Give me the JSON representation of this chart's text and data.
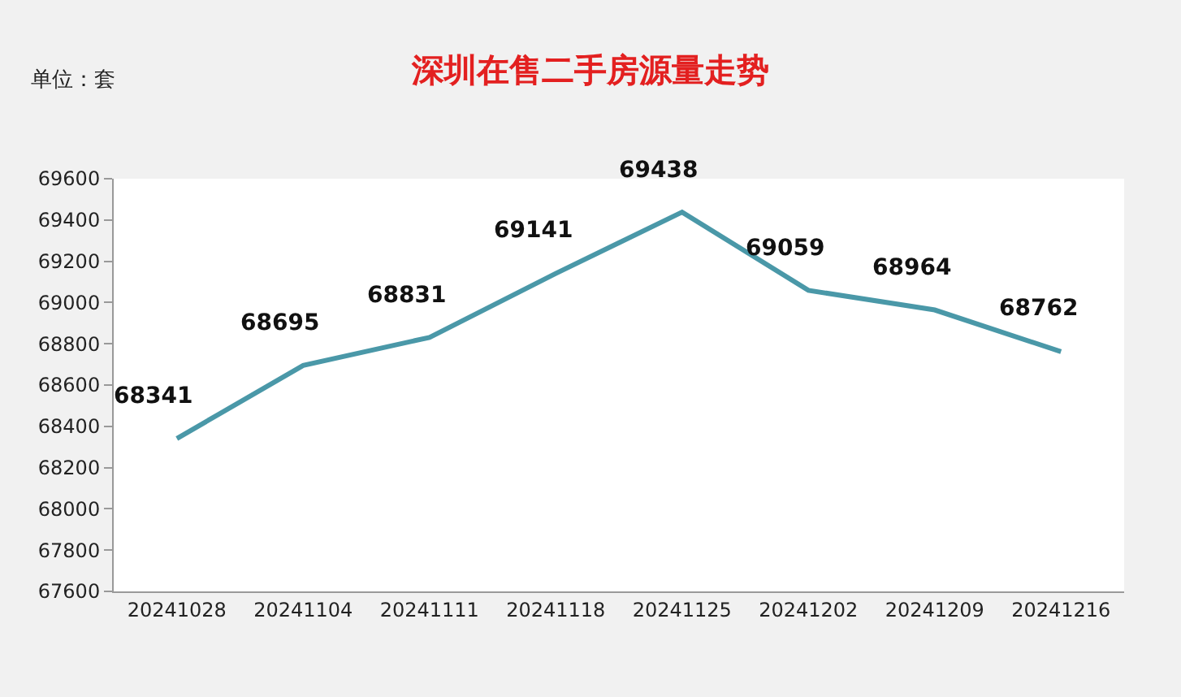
{
  "chart_data": {
    "type": "line",
    "title": "深圳在售二手房源量走势",
    "annotations": [
      "单位：套"
    ],
    "categories": [
      "20241028",
      "20241104",
      "20241111",
      "20241118",
      "20241125",
      "20241202",
      "20241209",
      "20241216"
    ],
    "series": [
      {
        "color": "#4a98a8",
        "values": [
          68341,
          68695,
          68831,
          69141,
          69438,
          69059,
          68964,
          68762
        ]
      }
    ],
    "ylim": [
      67600,
      69600
    ],
    "yticks": [
      67600,
      67800,
      68000,
      68200,
      68400,
      68600,
      68800,
      69000,
      69200,
      69400,
      69600
    ],
    "legend": false,
    "marker": "none",
    "line_style": "solid",
    "data_labels": true
  }
}
